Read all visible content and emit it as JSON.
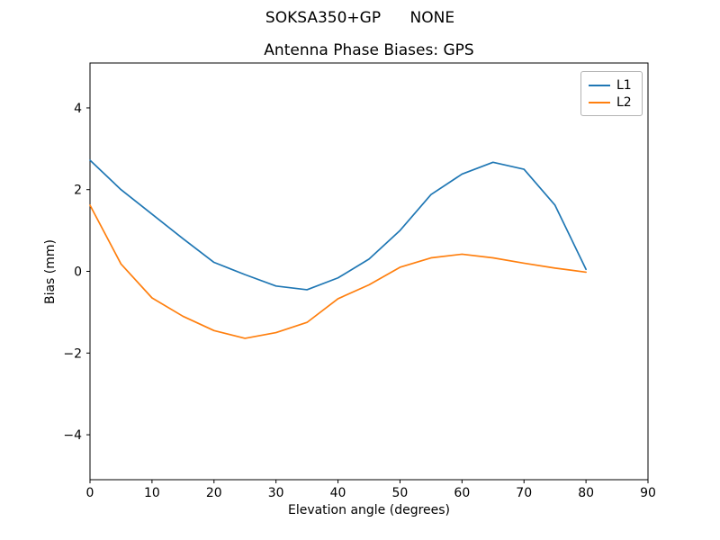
{
  "figure": {
    "suptitle": "SOKSA350+GP      NONE",
    "title": "Antenna Phase Biases: GPS",
    "xlabel": "Elevation angle (degrees)",
    "ylabel": "Bias (mm)"
  },
  "chart_data": {
    "type": "line",
    "title": "Antenna Phase Biases: GPS",
    "suptitle": "SOKSA350+GP      NONE",
    "xlabel": "Elevation angle (degrees)",
    "ylabel": "Bias (mm)",
    "x": [
      0,
      5,
      10,
      15,
      20,
      25,
      30,
      35,
      40,
      45,
      50,
      55,
      60,
      65,
      70,
      75,
      80
    ],
    "series": [
      {
        "name": "L1",
        "color": "#1f77b4",
        "values": [
          2.72,
          2.0,
          1.4,
          0.8,
          0.22,
          -0.08,
          -0.36,
          -0.45,
          -0.16,
          0.3,
          1.0,
          1.88,
          2.38,
          2.67,
          2.5,
          1.62,
          0.05
        ]
      },
      {
        "name": "L2",
        "color": "#ff7f0e",
        "values": [
          1.62,
          0.18,
          -0.65,
          -1.1,
          -1.45,
          -1.64,
          -1.5,
          -1.25,
          -0.67,
          -0.33,
          0.1,
          0.33,
          0.42,
          0.33,
          0.2,
          0.08,
          -0.02
        ]
      }
    ],
    "xlim": [
      0,
      90
    ],
    "ylim": [
      -5.1,
      5.1
    ],
    "xticks": [
      0,
      10,
      20,
      30,
      40,
      50,
      60,
      70,
      80,
      90
    ],
    "yticks": [
      -4,
      -2,
      0,
      2,
      4
    ],
    "grid": false,
    "legend": {
      "position": "upper right",
      "entries": [
        "L1",
        "L2"
      ]
    },
    "axis_color": "#000000",
    "background_color": "#ffffff"
  }
}
